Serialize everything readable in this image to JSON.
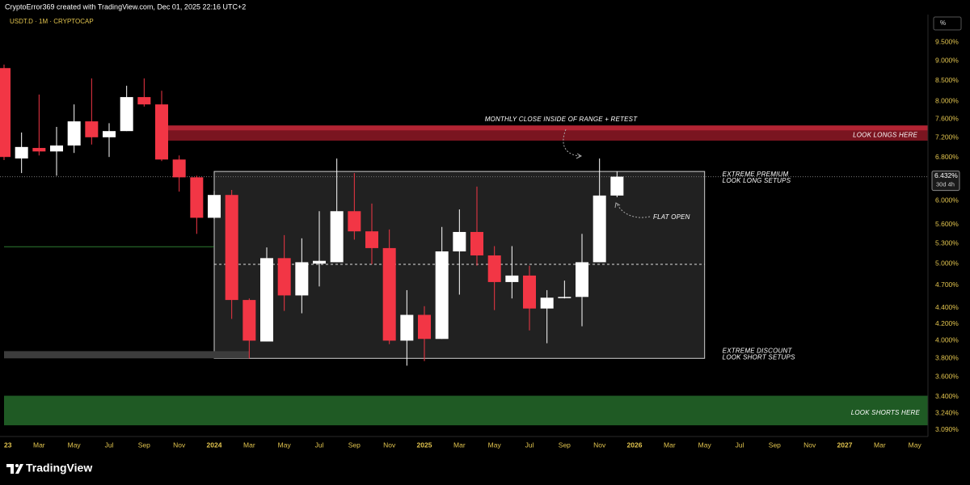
{
  "header": "CryptoError369 created with TradingView.com, Dec 01, 2025 22:16 UTC+2",
  "footer_logo": "TradingView",
  "unit_button": "%",
  "chart_data": {
    "type": "candlestick",
    "title": "USDT.D · 1M · CRYPTOCAP",
    "log_scale": true,
    "categories": [
      "23",
      null,
      "Mar",
      null,
      "May",
      null,
      "Jul",
      null,
      "Sep",
      null,
      "Nov",
      null,
      "2024",
      null,
      "Mar",
      null,
      "May",
      null,
      "Jul",
      null,
      "Sep",
      null,
      "Nov",
      null,
      "2025",
      null,
      "Mar",
      null,
      "May",
      null,
      "Jul",
      null,
      "Sep",
      null,
      "Nov",
      null,
      "2026",
      null,
      "Mar",
      null,
      "May",
      null,
      "Jul",
      null,
      "Sep",
      null,
      "Nov",
      null,
      "2027",
      null,
      "Mar",
      null,
      "May"
    ],
    "open": [
      8.81,
      6.78,
      6.99,
      6.92,
      7.04,
      7.55,
      7.21,
      7.34,
      8.1,
      7.93,
      6.76,
      6.42,
      5.71,
      6.1,
      4.5,
      3.99,
      5.08,
      4.56,
      5.0,
      5.02,
      5.82,
      5.49,
      5.23,
      4.0,
      4.31,
      4.02,
      5.18,
      5.48,
      5.12,
      4.74,
      4.83,
      4.39,
      4.53,
      4.54,
      5.02,
      6.09,
      null,
      null,
      null,
      null,
      null,
      null,
      null,
      null,
      null,
      null,
      null,
      null,
      null,
      null,
      null,
      null,
      null
    ],
    "high": [
      8.9,
      7.31,
      8.16,
      7.43,
      7.93,
      8.55,
      7.51,
      8.37,
      8.55,
      8.25,
      6.84,
      6.45,
      6.17,
      6.19,
      4.52,
      5.24,
      5.43,
      5.38,
      5.82,
      6.78,
      6.5,
      5.95,
      5.52,
      4.63,
      4.42,
      5.56,
      5.85,
      6.25,
      5.26,
      5.26,
      4.97,
      4.63,
      4.76,
      5.45,
      6.78,
      6.53,
      null,
      null,
      null,
      null,
      null,
      null,
      null,
      null,
      null,
      null,
      null,
      null,
      null,
      null,
      null,
      null,
      null
    ],
    "low": [
      6.75,
      6.5,
      6.84,
      6.45,
      6.89,
      7.06,
      6.81,
      7.34,
      7.88,
      6.73,
      6.16,
      5.45,
      5.69,
      4.26,
      3.8,
      3.99,
      4.36,
      4.33,
      4.68,
      5.02,
      5.36,
      4.99,
      3.96,
      3.72,
      3.77,
      4.02,
      4.57,
      4.97,
      4.37,
      4.52,
      4.12,
      3.97,
      4.52,
      4.17,
      5.02,
      6.06,
      null,
      null,
      null,
      null,
      null,
      null,
      null,
      null,
      null,
      null,
      null,
      null,
      null,
      null,
      null,
      null,
      null
    ],
    "close": [
      6.81,
      7.01,
      6.92,
      7.04,
      7.55,
      7.21,
      7.34,
      8.1,
      7.93,
      6.76,
      6.42,
      5.71,
      6.1,
      4.5,
      4.0,
      5.08,
      4.56,
      5.02,
      5.04,
      5.82,
      5.49,
      5.23,
      4.0,
      4.31,
      4.02,
      5.18,
      5.48,
      5.12,
      4.74,
      4.83,
      4.39,
      4.53,
      4.54,
      5.02,
      6.09,
      6.432,
      null,
      null,
      null,
      null,
      null,
      null,
      null,
      null,
      null,
      null,
      null,
      null,
      null,
      null,
      null,
      null,
      null
    ],
    "up_color": "#ffffff",
    "down_color": "#f23645",
    "ylim": [
      3.03,
      10.24
    ],
    "yticks": [
      {
        "value": 9.5,
        "label": "9.500%"
      },
      {
        "value": 9.0,
        "label": "9.000%"
      },
      {
        "value": 8.5,
        "label": "8.500%"
      },
      {
        "value": 8.0,
        "label": "8.000%"
      },
      {
        "value": 7.6,
        "label": "7.600%"
      },
      {
        "value": 7.2,
        "label": "7.200%"
      },
      {
        "value": 6.8,
        "label": "6.800%"
      },
      {
        "value": 6.0,
        "label": "6.000%"
      },
      {
        "value": 5.6,
        "label": "5.600%"
      },
      {
        "value": 5.3,
        "label": "5.300%"
      },
      {
        "value": 5.0,
        "label": "5.000%"
      },
      {
        "value": 4.7,
        "label": "4.700%"
      },
      {
        "value": 4.4,
        "label": "4.400%"
      },
      {
        "value": 4.2,
        "label": "4.200%"
      },
      {
        "value": 4.0,
        "label": "4.000%"
      },
      {
        "value": 3.8,
        "label": "3.800%"
      },
      {
        "value": 3.6,
        "label": "3.600%"
      },
      {
        "value": 3.4,
        "label": "3.400%"
      },
      {
        "value": 3.24,
        "label": "3.240%"
      },
      {
        "value": 3.09,
        "label": "3.090%"
      }
    ],
    "last_price": {
      "value": 6.432,
      "label": "6.432%"
    },
    "countdown": "30d 4h",
    "long_zone": {
      "range": [
        7.14,
        7.46
      ],
      "label": "LOOK LONGS HERE",
      "color": "#7a1520"
    },
    "short_zone": {
      "range": [
        3.13,
        3.41
      ],
      "label": "LOOK SHORTS HERE",
      "color": "#1f5a24"
    },
    "range_box": {
      "range": [
        3.8,
        6.53
      ],
      "mid": 4.99,
      "top_label": [
        "EXTREME PREMIUM",
        "LOOK LONG SETUPS"
      ],
      "bottom_label": [
        "EXTREME DISCOUNT",
        "LOOK SHORT SETUPS"
      ]
    },
    "support_line": 5.25,
    "strip": [
      3.8,
      3.88
    ],
    "annotations": [
      "MONTHLY CLOSE INSIDE OF RANGE + RETEST",
      "FLAT OPEN"
    ]
  }
}
